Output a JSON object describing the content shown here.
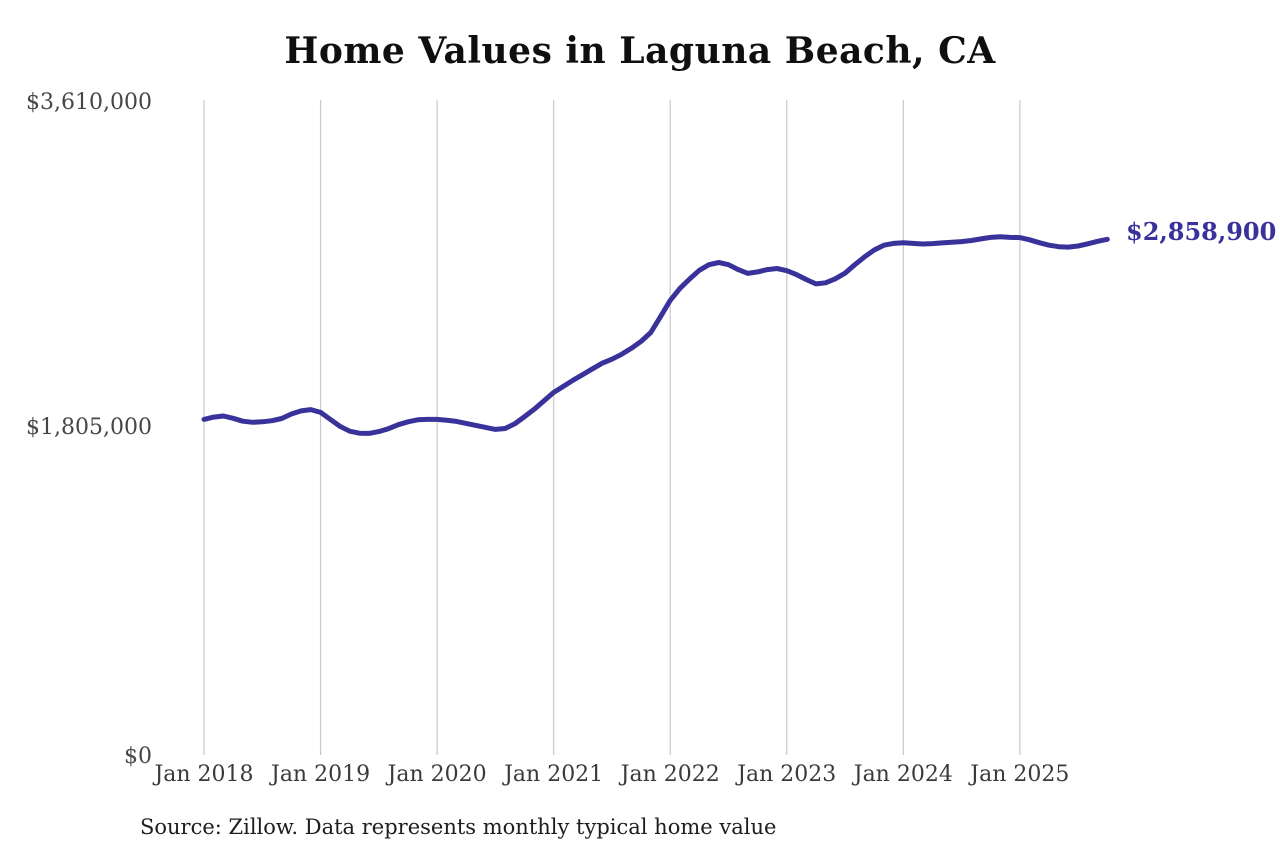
{
  "title": "Home Values in Laguna Beach, CA",
  "end_label": "$2,858,900",
  "source_note": "Source: Zillow. Data represents monthly typical home value",
  "chart_data": {
    "type": "line",
    "title": "Home Values in Laguna Beach, CA",
    "xlabel": "",
    "ylabel": "",
    "ylim": [
      0,
      3610000
    ],
    "grid": "vertical-only",
    "legend": "none",
    "line_color": "#39329b",
    "gridline_color": "#c9c9c9",
    "yticks": [
      {
        "label": "$3,610,000",
        "value": 3610000
      },
      {
        "label": "$1,805,000",
        "value": 1805000
      },
      {
        "label": "$0",
        "value": 0
      }
    ],
    "x_labels": [
      "Jan 2018",
      "Jan 2019",
      "Jan 2020",
      "Jan 2021",
      "Jan 2022",
      "Jan 2023",
      "Jan 2024",
      "Jan 2025"
    ],
    "x_label_month_indices": [
      0,
      12,
      24,
      36,
      48,
      60,
      72,
      84
    ],
    "series_start": "Jan 2018",
    "series_end": "Oct 2025",
    "series_frequency": "monthly",
    "latest_value": 2858900,
    "values": [
      1866000,
      1879000,
      1885000,
      1872000,
      1856000,
      1850000,
      1853000,
      1859000,
      1871000,
      1896000,
      1913000,
      1920000,
      1905000,
      1866000,
      1828000,
      1801000,
      1790000,
      1789000,
      1799000,
      1815000,
      1837000,
      1853000,
      1864000,
      1866000,
      1866000,
      1861000,
      1855000,
      1844000,
      1833000,
      1822000,
      1811000,
      1816000,
      1842000,
      1881000,
      1922000,
      1968000,
      2015000,
      2048000,
      2082000,
      2113000,
      2145000,
      2176000,
      2198000,
      2225000,
      2258000,
      2296000,
      2345000,
      2432000,
      2522000,
      2588000,
      2640000,
      2688000,
      2719000,
      2731000,
      2719000,
      2692000,
      2671000,
      2679000,
      2692000,
      2698000,
      2686000,
      2664000,
      2637000,
      2613000,
      2619000,
      2641000,
      2672000,
      2718000,
      2762000,
      2800000,
      2826000,
      2836000,
      2840000,
      2836000,
      2833000,
      2835000,
      2839000,
      2842000,
      2846000,
      2852000,
      2861000,
      2869000,
      2873000,
      2869000,
      2868000,
      2856000,
      2840000,
      2826000,
      2818000,
      2816000,
      2822000,
      2834000,
      2848000,
      2858900
    ]
  }
}
